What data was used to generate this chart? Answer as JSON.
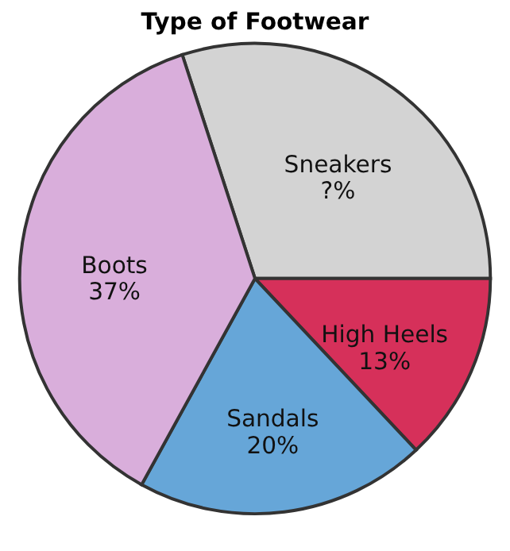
{
  "chart_data": {
    "type": "pie",
    "title": "Type of Footwear",
    "categories": [
      "Sneakers",
      "High Heels",
      "Sandals",
      "Boots"
    ],
    "values": [
      30,
      13,
      20,
      37
    ],
    "value_labels": [
      "?%",
      "13%",
      "20%",
      "37%"
    ],
    "colors": [
      "#d3d3d3",
      "#d6305a",
      "#66a6d8",
      "#d9aedb"
    ],
    "legend": false
  }
}
